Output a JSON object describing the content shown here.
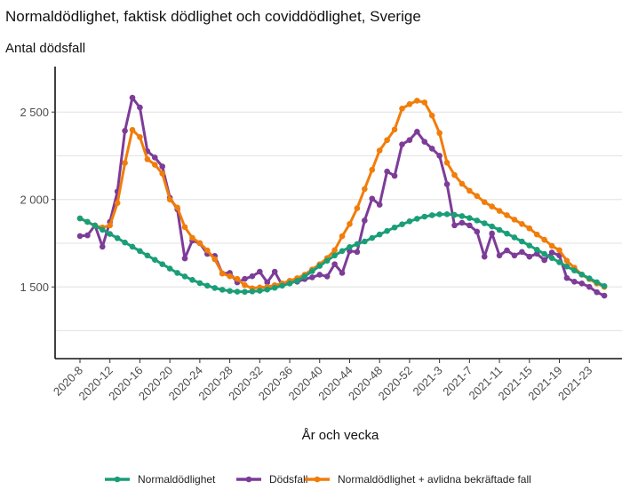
{
  "chart_data": {
    "type": "line",
    "title": "Normaldödlighet, faktisk dödlighet och coviddödlighet, Sverige",
    "ylabel": "Antal dödsfall",
    "xlabel": "År och vecka",
    "ylim": [
      1090,
      2760
    ],
    "grid": true,
    "legend_position": "bottom",
    "y_ticks": [
      1500,
      2000,
      2500
    ],
    "y_tick_labels": [
      "1 500",
      "2 000",
      "2 500"
    ],
    "y_minor_grid": [
      1250,
      1750,
      2250
    ],
    "x_tick_labels": [
      "2020-8",
      "2020-12",
      "2020-16",
      "2020-20",
      "2020-24",
      "2020-28",
      "2020-32",
      "2020-36",
      "2020-40",
      "2020-44",
      "2020-48",
      "2020-52",
      "2021-3",
      "2021-7",
      "2021-11",
      "2021-15",
      "2021-19",
      "2021-23"
    ],
    "x": [
      "2020-8",
      "2020-9",
      "2020-10",
      "2020-11",
      "2020-12",
      "2020-13",
      "2020-14",
      "2020-15",
      "2020-16",
      "2020-17",
      "2020-18",
      "2020-19",
      "2020-20",
      "2020-21",
      "2020-22",
      "2020-23",
      "2020-24",
      "2020-25",
      "2020-26",
      "2020-27",
      "2020-28",
      "2020-29",
      "2020-30",
      "2020-31",
      "2020-32",
      "2020-33",
      "2020-34",
      "2020-35",
      "2020-36",
      "2020-37",
      "2020-38",
      "2020-39",
      "2020-40",
      "2020-41",
      "2020-42",
      "2020-43",
      "2020-44",
      "2020-45",
      "2020-46",
      "2020-47",
      "2020-48",
      "2020-49",
      "2020-50",
      "2020-51",
      "2020-52",
      "2020-53",
      "2021-1",
      "2021-2",
      "2021-3",
      "2021-4",
      "2021-5",
      "2021-6",
      "2021-7",
      "2021-8",
      "2021-9",
      "2021-10",
      "2021-11",
      "2021-12",
      "2021-13",
      "2021-14",
      "2021-15",
      "2021-16",
      "2021-17",
      "2021-18",
      "2021-19",
      "2021-20",
      "2021-21",
      "2021-22",
      "2021-23",
      "2021-24",
      "2021-25"
    ],
    "series": [
      {
        "name": "Normaldödlighet",
        "color": "#1a9e77",
        "values": [
          1892,
          1872,
          1850,
          1827,
          1803,
          1779,
          1754,
          1730,
          1705,
          1680,
          1655,
          1630,
          1605,
          1580,
          1560,
          1540,
          1522,
          1507,
          1494,
          1484,
          1477,
          1473,
          1472,
          1474,
          1478,
          1485,
          1495,
          1507,
          1520,
          1535,
          1560,
          1590,
          1620,
          1650,
          1680,
          1705,
          1728,
          1745,
          1760,
          1780,
          1800,
          1820,
          1840,
          1858,
          1875,
          1890,
          1902,
          1910,
          1915,
          1916,
          1912,
          1905,
          1894,
          1880,
          1864,
          1846,
          1826,
          1805,
          1783,
          1760,
          1737,
          1713,
          1689,
          1665,
          1641,
          1617,
          1594,
          1571,
          1549,
          1527,
          1505
        ]
      },
      {
        "name": "Dödsfall",
        "color": "#7d3c98",
        "values": [
          1791,
          1795,
          1852,
          1730,
          1872,
          2046,
          2393,
          2582,
          2526,
          2276,
          2240,
          2189,
          2010,
          1944,
          1663,
          1765,
          1750,
          1689,
          1677,
          1577,
          1580,
          1526,
          1546,
          1561,
          1587,
          1526,
          1587,
          1510,
          1530,
          1530,
          1545,
          1555,
          1570,
          1560,
          1630,
          1580,
          1705,
          1700,
          1880,
          2005,
          1970,
          2160,
          2135,
          2315,
          2340,
          2388,
          2330,
          2291,
          2250,
          2087,
          1852,
          1867,
          1852,
          1816,
          1673,
          1806,
          1680,
          1709,
          1680,
          1700,
          1673,
          1690,
          1653,
          1697,
          1680,
          1551,
          1530,
          1520,
          1500,
          1470,
          1450
        ]
      },
      {
        "name": "Normaldödlighet + avlidna bekräftade fall",
        "color": "#f17d0a",
        "values": [
          1892,
          1872,
          1850,
          1840,
          1852,
          1980,
          2209,
          2398,
          2357,
          2230,
          2199,
          2148,
          2000,
          1954,
          1842,
          1781,
          1750,
          1709,
          1658,
          1577,
          1561,
          1546,
          1510,
          1492,
          1497,
          1500,
          1510,
          1520,
          1535,
          1550,
          1570,
          1600,
          1630,
          1665,
          1710,
          1790,
          1860,
          1950,
          2060,
          2170,
          2280,
          2340,
          2400,
          2520,
          2545,
          2565,
          2555,
          2480,
          2380,
          2210,
          2140,
          2090,
          2050,
          2020,
          1985,
          1960,
          1935,
          1910,
          1885,
          1860,
          1835,
          1800,
          1770,
          1735,
          1710,
          1650,
          1610,
          1570,
          1545,
          1520,
          1500
        ]
      }
    ]
  }
}
